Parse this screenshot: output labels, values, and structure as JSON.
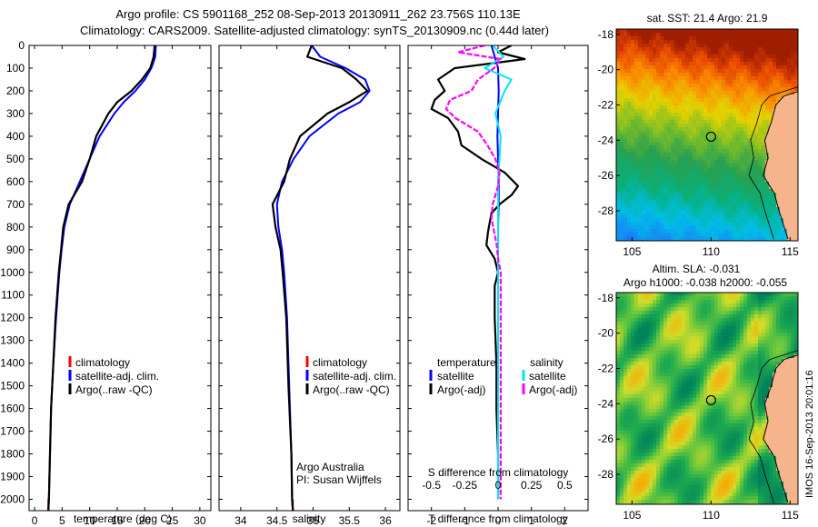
{
  "header": {
    "line1": "Argo profile: CS 5901168_252 08-Sep-2013 20130911_262 23.756S 110.13E",
    "line2": "Climatology: CARS2009. Satellite-adjusted climatology: synTS_20130909.nc (0.44d later)"
  },
  "colors": {
    "climatology": "#ff0000",
    "satellite": "#0000ff",
    "argo": "#000000",
    "satellite_salinity": "#00e5ee",
    "argo_salinity": "#ff00ff",
    "sst_cool": "#1f7fff",
    "sst_warm": "#b03000",
    "sla_high": "#ff9a00",
    "land": "#f6b48c"
  },
  "depth_axis": {
    "ylim": [
      0,
      2050
    ],
    "ticks": [
      0,
      100,
      200,
      300,
      400,
      500,
      600,
      700,
      800,
      900,
      1000,
      1100,
      1200,
      1300,
      1400,
      1500,
      1600,
      1700,
      1800,
      1900,
      2000
    ]
  },
  "chart_data": [
    {
      "type": "line",
      "id": "temperature",
      "xlabel": "temperature (deg C)",
      "xlim": [
        -1,
        32
      ],
      "xticks": [
        0,
        5,
        10,
        15,
        20,
        25,
        30
      ],
      "legend": [
        "climatology",
        "satellite-adj. clim.",
        "Argo(..raw -QC)"
      ],
      "series": [
        {
          "name": "climatology",
          "color": "#ff0000",
          "depth": [
            2000,
            2050
          ],
          "values": [
            2.5,
            2.5
          ]
        },
        {
          "name": "satellite-adj. clim.",
          "color": "#0000ff",
          "depth": [
            0,
            50,
            100,
            150,
            200,
            250,
            300,
            400,
            500,
            600,
            700,
            800,
            900,
            1000,
            1200,
            1400,
            1600,
            1800,
            2000,
            2050
          ],
          "values": [
            22,
            21.9,
            21.2,
            20,
            18.3,
            16.2,
            14.5,
            11.8,
            10,
            8.2,
            6.4,
            5.4,
            4.9,
            4.5,
            3.9,
            3.4,
            3.0,
            2.8,
            2.6,
            2.5
          ]
        },
        {
          "name": "Argo(..raw -QC)",
          "color": "#000000",
          "depth": [
            0,
            50,
            100,
            150,
            200,
            250,
            300,
            400,
            500,
            600,
            700,
            800,
            900,
            1000,
            1200,
            1400,
            1600,
            1800,
            2000,
            2050
          ],
          "values": [
            21.8,
            21.6,
            21,
            19.5,
            17.6,
            15,
            13.4,
            11.2,
            10,
            8.6,
            6.2,
            5.2,
            4.8,
            4.4,
            3.8,
            3.4,
            3.0,
            2.8,
            2.6,
            2.5
          ]
        }
      ]
    },
    {
      "type": "line",
      "id": "salinity",
      "xlabel": "salinity",
      "xlim": [
        33.7,
        36.2
      ],
      "xticks": [
        34,
        34.5,
        35,
        35.5,
        36
      ],
      "legend": [
        "climatology",
        "satellite-adj. clim.",
        "Argo(..raw -QC)"
      ],
      "annotation": [
        "Argo Australia",
        "PI: Susan Wijffels"
      ],
      "series": [
        {
          "name": "climatology",
          "color": "#ff0000",
          "depth": [
            2000,
            2050
          ],
          "values": [
            34.72,
            34.72
          ]
        },
        {
          "name": "satellite-adj. clim.",
          "color": "#0000ff",
          "depth": [
            0,
            50,
            100,
            150,
            200,
            250,
            300,
            400,
            500,
            600,
            700,
            800,
            900,
            1000,
            1200,
            1500,
            1800,
            2000,
            2050
          ],
          "values": [
            34.98,
            35.1,
            35.45,
            35.72,
            35.78,
            35.65,
            35.35,
            34.95,
            34.73,
            34.57,
            34.5,
            34.52,
            34.57,
            34.6,
            34.64,
            34.67,
            34.7,
            34.71,
            34.72
          ]
        },
        {
          "name": "Argo(..raw -QC)",
          "color": "#000000",
          "depth": [
            0,
            50,
            100,
            150,
            200,
            250,
            300,
            400,
            500,
            600,
            700,
            800,
            900,
            1000,
            1200,
            1500,
            1800,
            2000,
            2050
          ],
          "values": [
            34.98,
            34.92,
            35.4,
            35.6,
            35.75,
            35.5,
            35.2,
            34.82,
            34.68,
            34.6,
            34.44,
            34.48,
            34.55,
            34.58,
            34.63,
            34.66,
            34.7,
            34.71,
            34.72
          ]
        }
      ]
    },
    {
      "type": "line",
      "id": "difference",
      "xlabel": "T difference from climatology",
      "xlabel_top": "S difference from climatology",
      "xlim": [
        -2.7,
        2.7
      ],
      "xticks": [
        -2,
        -1,
        0,
        1,
        2
      ],
      "sticks_values": [
        -0.5,
        -0.25,
        0,
        0.25,
        0.5
      ],
      "sticks": [
        "-0.5",
        "-0.25",
        "0",
        "0.25",
        "0.5"
      ],
      "legend_headers": [
        "temperature",
        "salinity"
      ],
      "legend": [
        "satellite",
        "Argo(-adj)",
        "satellite",
        "Argo(-adj)"
      ],
      "series": [
        {
          "name": "temperature satellite",
          "color": "#0000ff",
          "depth": [
            0,
            100,
            200,
            300,
            400,
            500,
            600,
            700,
            800,
            900,
            1000,
            1200,
            1400,
            1600,
            1800,
            2000
          ],
          "values": [
            -0.2,
            0,
            0.02,
            0,
            -0.02,
            0,
            0.02,
            0.02,
            0,
            0,
            0,
            0,
            0,
            0,
            0,
            0
          ]
        },
        {
          "name": "temperature Argo(-adj)",
          "color": "#000000",
          "depth": [
            0,
            30,
            60,
            100,
            150,
            200,
            240,
            280,
            320,
            380,
            440,
            500,
            560,
            620,
            660,
            700,
            740,
            780,
            820,
            880,
            940,
            1000,
            1060,
            1100,
            1200,
            1400,
            1600,
            1800,
            2000
          ],
          "values": [
            0.4,
            0,
            0.8,
            -1.3,
            -1.8,
            -1.6,
            -1.9,
            -2.0,
            -1.5,
            -1.2,
            -1.1,
            -0.5,
            0.2,
            0.6,
            0.4,
            0.05,
            -0.2,
            -0.25,
            -0.3,
            -0.35,
            -0.1,
            0.0,
            -0.1,
            -0.1,
            -0.1,
            -0.05,
            -0.05,
            0,
            0
          ]
        },
        {
          "name": "salinity satellite",
          "color": "#00e5ee",
          "depth": [
            0,
            50,
            100,
            150,
            200,
            300,
            400,
            500,
            600,
            800,
            1000,
            1400,
            1800,
            2000
          ],
          "values": [
            -0.04,
            0.04,
            -0.1,
            0.1,
            0.05,
            -0.02,
            0.02,
            0.01,
            0,
            0,
            0,
            0,
            0,
            0
          ]
        },
        {
          "name": "salinity Argo(-adj)",
          "color": "#ff00ff",
          "depth": [
            0,
            30,
            60,
            100,
            150,
            200,
            240,
            280,
            320,
            380,
            440,
            500,
            560,
            620,
            700,
            760,
            820,
            880,
            940,
            1000,
            1200,
            1400,
            1600,
            1800,
            2000
          ],
          "values": [
            -0.1,
            -0.3,
            0.02,
            -0.03,
            -0.15,
            -0.2,
            -0.36,
            -0.39,
            -0.32,
            -0.15,
            -0.08,
            -0.02,
            0.01,
            0.0,
            -0.04,
            -0.05,
            -0.03,
            -0.01,
            0.0,
            0.02,
            0.02,
            0.02,
            0.02,
            0.02,
            0.02
          ]
        }
      ]
    },
    {
      "type": "heatmap",
      "id": "sst_map",
      "title": "sat. SST: 21.4 Argo: 21.9",
      "xlim": [
        104,
        115.5
      ],
      "ylim": [
        -29.7,
        -17.7
      ],
      "xticks": [
        105,
        110,
        115
      ],
      "yticks": [
        -18,
        -20,
        -22,
        -24,
        -26,
        -28
      ],
      "marker": [
        110,
        -23.8
      ]
    },
    {
      "type": "heatmap",
      "id": "sla_map",
      "title_line1": "Altim. SLA: -0.031",
      "title_line2": "Argo h1000: -0.038 h2000: -0.055",
      "xlim": [
        104,
        115.5
      ],
      "ylim": [
        -29.7,
        -17.7
      ],
      "xticks": [
        105,
        110,
        115
      ],
      "yticks": [
        -18,
        -20,
        -22,
        -24,
        -26,
        -28
      ],
      "marker": [
        110,
        -23.8
      ]
    }
  ],
  "footer": {
    "credit": "IMOS 16-Sep-2013 20:01:16"
  }
}
